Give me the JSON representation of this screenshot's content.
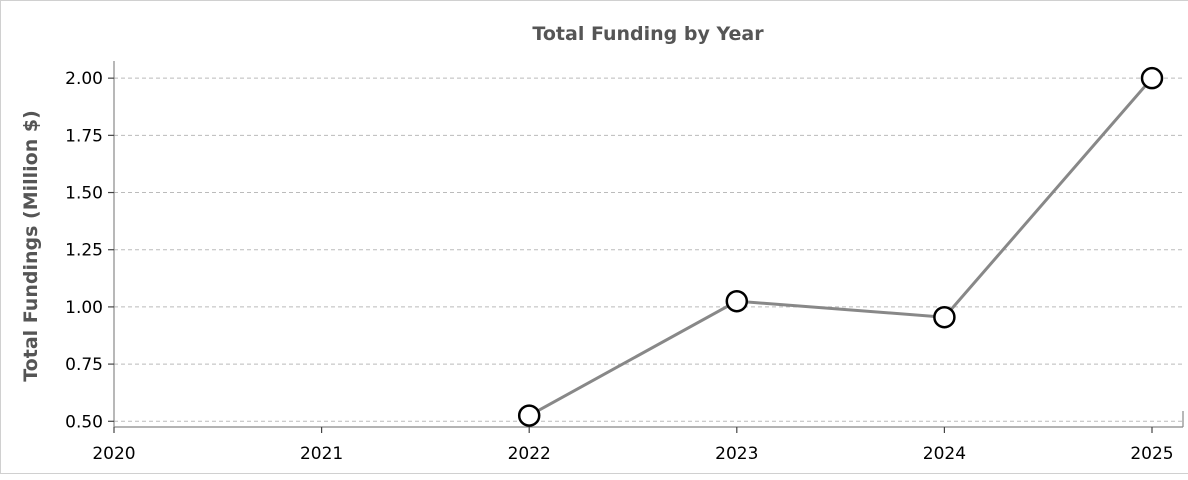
{
  "chart_data": {
    "type": "line",
    "title": "Total Funding by Year",
    "xlabel": "",
    "ylabel": "Total Fundings (Million $)",
    "x_ticks": [
      "2020",
      "2021",
      "2022",
      "2023",
      "2024",
      "2025"
    ],
    "xlim": [
      2020,
      2025
    ],
    "y_ticks": [
      "0.50",
      "0.75",
      "1.00",
      "1.25",
      "1.50",
      "1.75",
      "2.00"
    ],
    "ylim": [
      0.475,
      2.075
    ],
    "grid": "horizontal",
    "line_color": "#888888",
    "marker_fill": "#ffffff",
    "marker_edge": "#000000",
    "series": [
      {
        "x": [
          2022,
          2023,
          2024,
          2025
        ],
        "y": [
          0.525,
          1.025,
          0.955,
          2.0
        ]
      }
    ]
  }
}
